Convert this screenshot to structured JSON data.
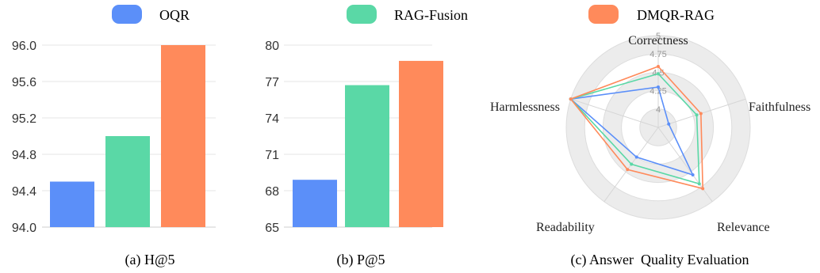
{
  "legend": [
    {
      "name": "OQR",
      "color": "#5B8FF9"
    },
    {
      "name": "RAG-Fusion",
      "color": "#5AD8A6"
    },
    {
      "name": "DMQR-RAG",
      "color": "#FF8A5B"
    }
  ],
  "captions": {
    "a": "(a) H@5",
    "b": "(b) P@5",
    "c": "(c) Answer  Quality Evaluation"
  },
  "chart_data": [
    {
      "type": "bar",
      "categories": [
        "OQR",
        "RAG-Fusion",
        "DMQR-RAG"
      ],
      "values": [
        94.5,
        95.0,
        96.0
      ],
      "ylim": [
        94.0,
        96.0
      ],
      "yticks": [
        "94.0",
        "94.4",
        "94.8",
        "95.2",
        "95.6",
        "96.0"
      ],
      "grid": true
    },
    {
      "type": "bar",
      "categories": [
        "OQR",
        "RAG-Fusion",
        "DMQR-RAG"
      ],
      "values": [
        68.9,
        76.7,
        78.7
      ],
      "ylim": [
        65,
        80
      ],
      "yticks": [
        "65",
        "68",
        "71",
        "74",
        "77",
        "80"
      ],
      "grid": true
    },
    {
      "type": "radar",
      "axes": [
        "Correctness",
        "Faithfulness",
        "Relevance",
        "Readability",
        "Harmlessness"
      ],
      "rlim": [
        3.75,
        5
      ],
      "rticks": [
        "4",
        "4.25",
        "4.5",
        "4.75",
        "5"
      ],
      "series": [
        {
          "name": "OQR",
          "values": [
            4.3,
            3.9,
            4.55,
            4.25,
            5.0
          ]
        },
        {
          "name": "RAG-Fusion",
          "values": [
            4.48,
            4.3,
            4.7,
            4.37,
            5.0
          ]
        },
        {
          "name": "DMQR-RAG",
          "values": [
            4.58,
            4.36,
            4.78,
            4.46,
            5.0
          ]
        }
      ]
    }
  ]
}
